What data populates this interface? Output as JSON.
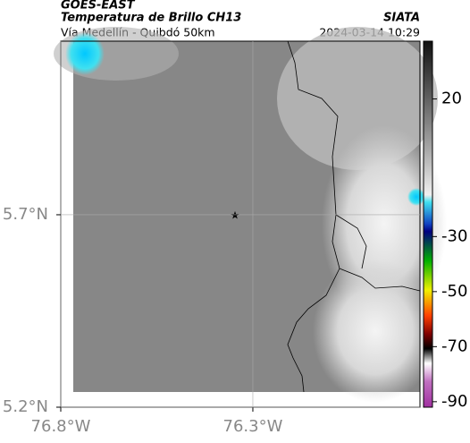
{
  "header": {
    "source": "GOES-EAST",
    "product": "Temperatura de Brillo CH13",
    "agency": "SIATA",
    "region": "Vía Medellín - Quibdó 50km",
    "datetime": "2024-03-14 10:29"
  },
  "map": {
    "xlim": [
      -76.8,
      -75.865
    ],
    "ylim": [
      5.2,
      6.151
    ],
    "xticks": [
      {
        "value": -76.8,
        "label": "76.8°W"
      },
      {
        "value": -76.3,
        "label": "76.3°W"
      }
    ],
    "yticks": [
      {
        "value": 5.7,
        "label": "5.7°N"
      },
      {
        "value": 5.2,
        "label": "5.2°N"
      }
    ],
    "grid": true
  },
  "colorbar": {
    "lim": [
      -92,
      41
    ],
    "ticks": [
      20,
      -30,
      -50,
      -70,
      -90
    ]
  }
}
